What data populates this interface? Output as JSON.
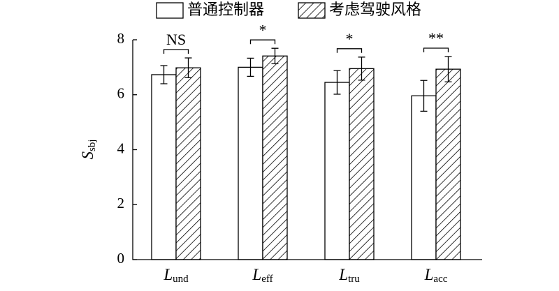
{
  "chart_data": {
    "type": "bar",
    "ylabel": [
      "S",
      "sbj"
    ],
    "categories": [
      [
        "L",
        "und"
      ],
      [
        "L",
        "eff"
      ],
      [
        "L",
        "tru"
      ],
      [
        "L",
        "acc"
      ]
    ],
    "series": [
      {
        "name": "普通控制器",
        "color": "#ffffff",
        "hatch": false,
        "values": [
          6.73,
          7.0,
          6.45,
          5.96
        ],
        "errors": [
          0.33,
          0.33,
          0.43,
          0.56
        ]
      },
      {
        "name": "考虑驾驶风格",
        "color": "#ffffff",
        "hatch": true,
        "values": [
          6.98,
          7.41,
          6.95,
          6.93
        ],
        "errors": [
          0.36,
          0.28,
          0.42,
          0.46
        ]
      }
    ],
    "significance": [
      "NS",
      "*",
      "*",
      "**"
    ],
    "ylim": [
      0,
      8
    ],
    "yticks": [
      0,
      2,
      4,
      6,
      8
    ],
    "grid": false
  }
}
